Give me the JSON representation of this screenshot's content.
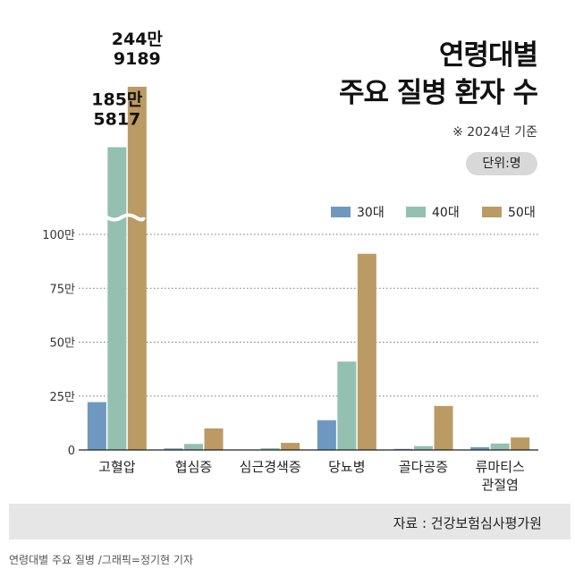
{
  "title_line1": "연령대별",
  "title_line2": "주요 질병 환자 수",
  "note": "※ 2024년 기준",
  "unit": "단위:명",
  "source": "자료 : 건강보험심사평가원",
  "credit": "연령대별 주요 질병 /그래픽=정기현 기자",
  "colors": {
    "30대": "#6f98c0",
    "40대": "#93c0b1",
    "50대": "#bb9a64"
  },
  "chart_data": {
    "type": "bar",
    "categories": [
      "고혈압",
      "협심증",
      "심근경색증",
      "당뇨병",
      "골다공증",
      "류마티스 관절염"
    ],
    "series": [
      {
        "name": "30대",
        "values": [
          222000,
          7000,
          2000,
          138000,
          5000,
          13000
        ]
      },
      {
        "name": "40대",
        "values": [
          1855817,
          28000,
          8000,
          410000,
          18000,
          30000
        ]
      },
      {
        "name": "50대",
        "values": [
          2449189,
          100000,
          33000,
          910000,
          204000,
          58000
        ]
      }
    ],
    "ylim": [
      0,
      1000000
    ],
    "yticks": [
      0,
      250000,
      500000,
      750000,
      1000000
    ],
    "ytick_labels": [
      "0",
      "25만",
      "50만",
      "75만",
      "100만"
    ],
    "axis_break": true,
    "data_labels": [
      {
        "series": "40대",
        "category": "고혈압",
        "lines": [
          "185만",
          "5817"
        ]
      },
      {
        "series": "50대",
        "category": "고혈압",
        "lines": [
          "244만",
          "9189"
        ]
      }
    ],
    "grid": true,
    "legend_placement": "top-right"
  }
}
